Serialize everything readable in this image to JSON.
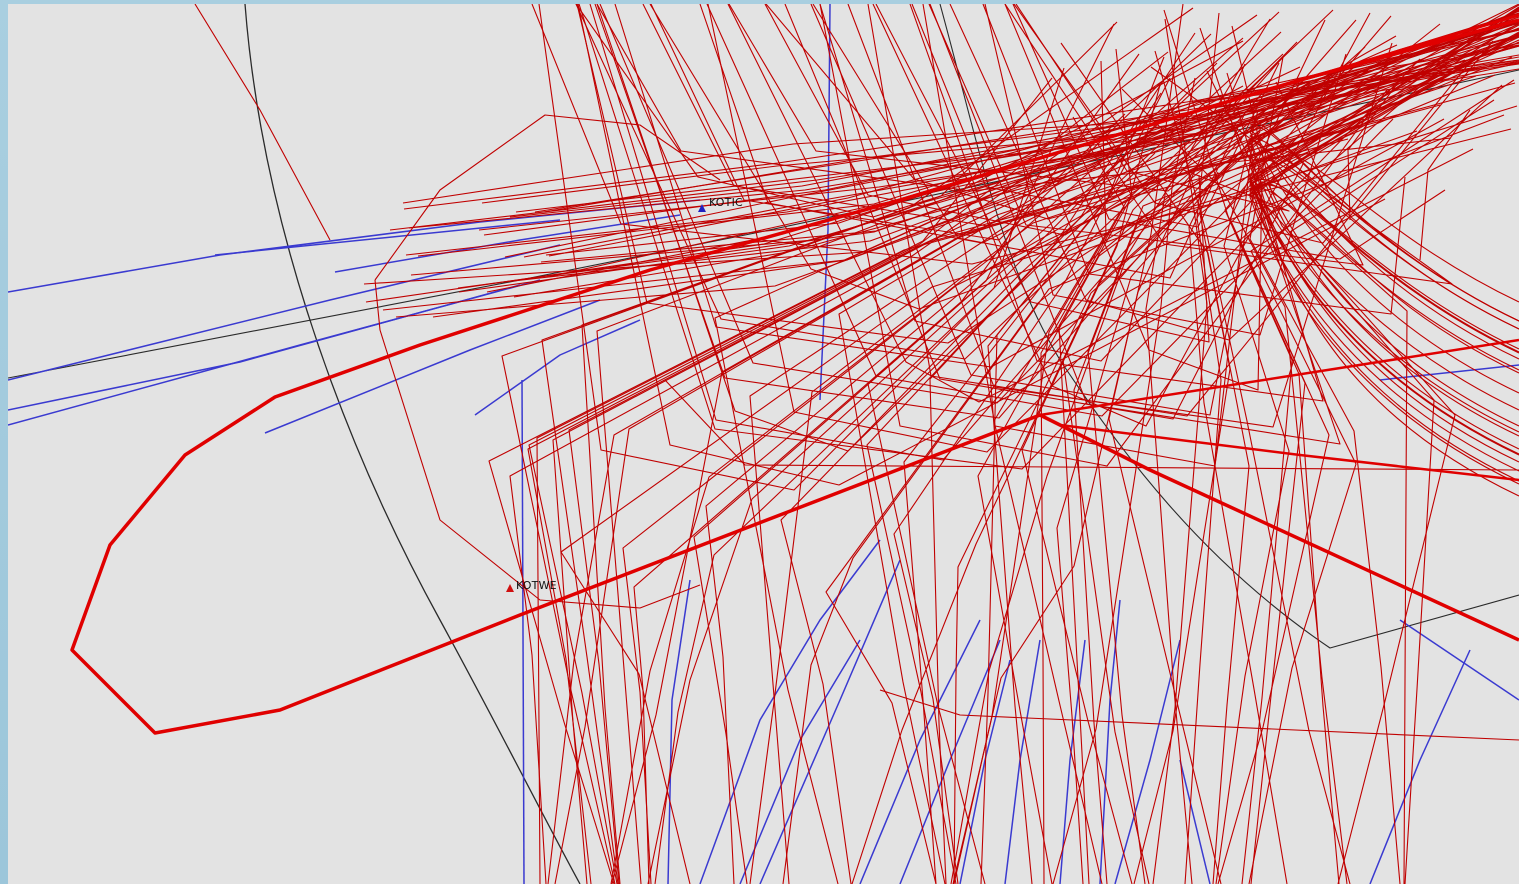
{
  "map": {
    "waypoints": [
      {
        "name": "KOTWE",
        "symbol": "triangle-red"
      },
      {
        "name": "KOTIC",
        "symbol": "triangle-blue"
      }
    ],
    "colors": {
      "background": "#e3e3e3",
      "frame": "#9cc6da",
      "arrival_tracks": "#c00000",
      "departure_tracks": "#3a3ad0",
      "boundaries": "#2a2a2a",
      "highlight_track": "#e00000"
    }
  }
}
